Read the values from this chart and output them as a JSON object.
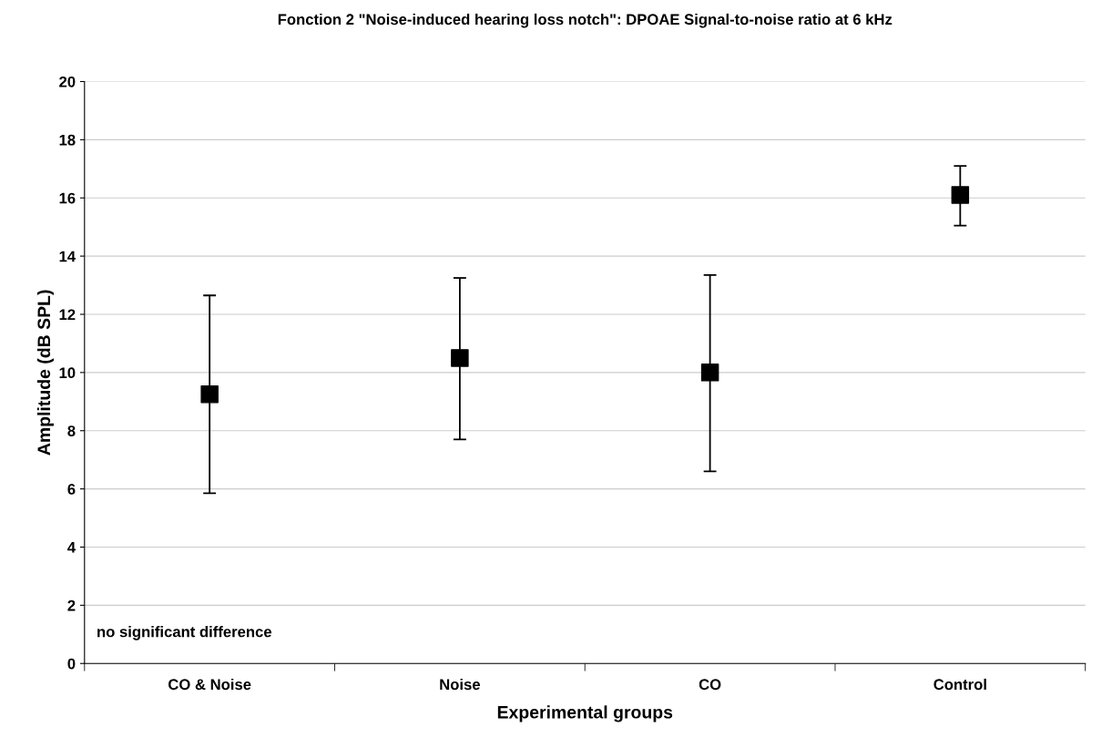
{
  "chart_data": {
    "type": "scatter",
    "title": "Fonction 2 \"Noise-induced hearing loss notch\": DPOAE Signal-to-noise ratio at 6 kHz",
    "xlabel": "Experimental groups",
    "ylabel": "Amplitude (dB SPL)",
    "categories": [
      "CO & Noise",
      "Noise",
      "CO",
      "Control"
    ],
    "series": [
      {
        "color": "#000000",
        "values": [
          9.25,
          10.5,
          10.0,
          16.1
        ],
        "errors": [
          [
            5.85,
            12.65
          ],
          [
            7.7,
            13.25
          ],
          [
            6.6,
            13.35
          ],
          [
            15.05,
            17.1
          ]
        ]
      }
    ],
    "ylim": [
      0,
      20
    ],
    "yticks": [
      0,
      2,
      4,
      6,
      8,
      10,
      12,
      14,
      16,
      18,
      20
    ],
    "grid": "y",
    "marker": "square",
    "annotations": [
      "no significant difference"
    ]
  }
}
